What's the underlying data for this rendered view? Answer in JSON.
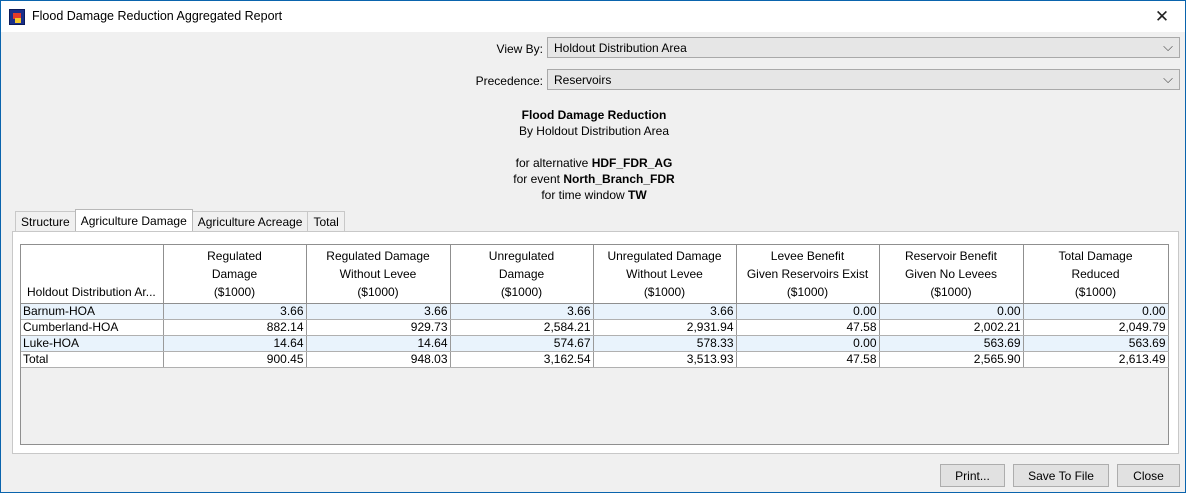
{
  "window": {
    "title": "Flood Damage Reduction Aggregated Report"
  },
  "icons": {
    "app": "app-icon",
    "close": "close-icon",
    "dropdown": "chevron-down-icon"
  },
  "controls": {
    "view_by_label": "View By:",
    "view_by_value": "Holdout Distribution Area",
    "precedence_label": "Precedence:",
    "precedence_value": "Reservoirs"
  },
  "report": {
    "title": "Flood Damage Reduction",
    "subtitle": "By Holdout Distribution Area",
    "alt_prefix": "for alternative ",
    "alt_value": "HDF_FDR_AG",
    "event_prefix": "for event ",
    "event_value": "North_Branch_FDR",
    "window_prefix": "for time window ",
    "window_value": "TW"
  },
  "tabs": [
    {
      "label": "Structure",
      "active": false
    },
    {
      "label": "Agriculture Damage",
      "active": true
    },
    {
      "label": "Agriculture Acreage",
      "active": false
    },
    {
      "label": "Total",
      "active": false
    }
  ],
  "table": {
    "columns": [
      [
        "Holdout Distribution Ar..."
      ],
      [
        "Regulated",
        "Damage",
        "($1000)"
      ],
      [
        "Regulated Damage",
        "Without Levee",
        "($1000)"
      ],
      [
        "Unregulated",
        "Damage",
        "($1000)"
      ],
      [
        "Unregulated Damage",
        "Without Levee",
        "($1000)"
      ],
      [
        "Levee Benefit",
        "Given Reservoirs Exist",
        "($1000)"
      ],
      [
        "Reservoir Benefit",
        "Given No Levees",
        "($1000)"
      ],
      [
        "Total Damage",
        "Reduced",
        "($1000)"
      ]
    ],
    "rows": [
      [
        "Barnum-HOA",
        "3.66",
        "3.66",
        "3.66",
        "3.66",
        "0.00",
        "0.00",
        "0.00"
      ],
      [
        "Cumberland-HOA",
        "882.14",
        "929.73",
        "2,584.21",
        "2,931.94",
        "47.58",
        "2,002.21",
        "2,049.79"
      ],
      [
        "Luke-HOA",
        "14.64",
        "14.64",
        "574.67",
        "578.33",
        "0.00",
        "563.69",
        "563.69"
      ],
      [
        "Total",
        "900.45",
        "948.03",
        "3,162.54",
        "3,513.93",
        "47.58",
        "2,565.90",
        "2,613.49"
      ]
    ]
  },
  "buttons": {
    "print": "Print...",
    "save": "Save To File",
    "close": "Close"
  }
}
